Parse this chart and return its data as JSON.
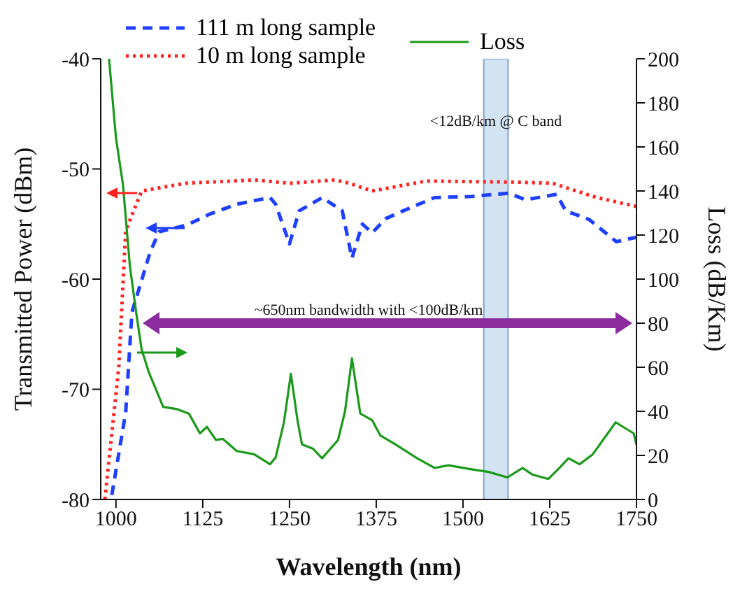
{
  "chart_data": {
    "type": "line",
    "xlabel": "Wavelength (nm)",
    "ylabel": "Transmitted Power (dBm)",
    "y2label": "Loss (dB/Km)",
    "xlim": [
      978,
      1750
    ],
    "xticks": [
      1000,
      1125,
      1250,
      1375,
      1500,
      1625,
      1750
    ],
    "ylim": [
      -80,
      -40
    ],
    "yticks": [
      -80,
      -70,
      -60,
      -50,
      -40
    ],
    "y2lim": [
      0,
      200
    ],
    "y2ticks": [
      0,
      20,
      40,
      60,
      80,
      100,
      120,
      140,
      160,
      180,
      200
    ],
    "legend": "top",
    "marker": "none",
    "series": [
      {
        "name": "111 m long sample",
        "color": "#1f3fff",
        "line_style": "dashed",
        "x": [
          994,
          1014,
          1023,
          1049,
          1062,
          1102,
          1135,
          1174,
          1222,
          1230,
          1250,
          1264,
          1297,
          1326,
          1340,
          1355,
          1369,
          1389,
          1414,
          1459,
          1512,
          1566,
          1590,
          1635,
          1648,
          1682,
          1721,
          1750
        ],
        "values": [
          -79.6,
          -72.1,
          -63.0,
          -57.6,
          -55.7,
          -55.1,
          -54.1,
          -53.2,
          -52.6,
          -53.2,
          -56.8,
          -53.8,
          -52.6,
          -53.8,
          -58.1,
          -55.0,
          -55.8,
          -54.5,
          -53.8,
          -52.6,
          -52.5,
          -52.2,
          -52.8,
          -52.3,
          -53.8,
          -54.6,
          -56.6,
          -56.2
        ]
      },
      {
        "name": "10 m long sample",
        "color": "#ff2020",
        "line_style": "dotted",
        "x": [
          984,
          1004,
          1014,
          1037,
          1100,
          1200,
          1250,
          1316,
          1336,
          1369,
          1447,
          1576,
          1629,
          1693,
          1750
        ],
        "values": [
          -80,
          -68.0,
          -55.6,
          -52.0,
          -51.3,
          -51.0,
          -51.3,
          -51.0,
          -51.3,
          -52.0,
          -51.1,
          -51.2,
          -51.3,
          -52.6,
          -53.4
        ]
      },
      {
        "name": "Loss",
        "color": "#1a9a1a",
        "line_style": "solid",
        "axis": "y2",
        "x": [
          990,
          1000,
          1010,
          1020,
          1029,
          1037,
          1047,
          1068,
          1088,
          1105,
          1121,
          1131,
          1144,
          1154,
          1174,
          1199,
          1222,
          1230,
          1242,
          1252,
          1262,
          1268,
          1284,
          1297,
          1320,
          1330,
          1340,
          1352,
          1369,
          1381,
          1400,
          1434,
          1459,
          1479,
          1512,
          1537,
          1564,
          1586,
          1600,
          1623,
          1638,
          1652,
          1668,
          1687,
          1720,
          1746,
          1750
        ],
        "values": [
          200,
          164,
          143,
          106,
          85,
          68,
          58,
          42,
          41,
          39,
          30,
          33,
          27,
          27.5,
          22,
          20.5,
          16,
          19,
          35,
          57,
          35,
          25,
          23,
          18.7,
          27,
          40,
          64,
          39,
          36,
          29,
          25.5,
          18.7,
          14.3,
          15.5,
          13.7,
          12.5,
          10,
          14.3,
          11.3,
          9.3,
          14,
          18.7,
          16,
          20.5,
          35,
          30,
          25
        ]
      }
    ],
    "bands": [
      {
        "axis": "x",
        "from": 1530,
        "to": 1565,
        "label": "<12dB/km @ C band",
        "color": "#cfe0f1"
      }
    ],
    "ref_lines": [
      {
        "axis": "y2",
        "value": 80,
        "label": "~650nm bandwidth with <100dB/km",
        "color": "#8a2b9e"
      }
    ]
  }
}
